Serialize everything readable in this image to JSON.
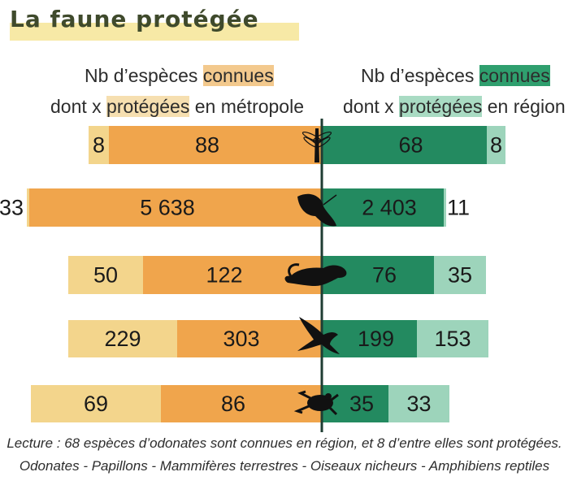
{
  "title": "La faune protégée",
  "header_left": {
    "line1_pre": "Nb d’espèces ",
    "line1_hl": "connues",
    "line2_pre": "dont x ",
    "line2_hl": "protégées",
    "line2_post": " en métropole"
  },
  "header_right": {
    "line1_pre": "Nb d’espèces ",
    "line1_hl": "connues",
    "line2_pre": "dont x ",
    "line2_hl": "protégées",
    "line2_post": " en région"
  },
  "colors": {
    "metro_known": "#f0a54c",
    "metro_protected": "#f3d58c",
    "region_known": "#238a60",
    "region_protected": "#9dd4bb",
    "axis": "#1f3d33"
  },
  "chart_data": {
    "type": "bar",
    "categories": [
      "Odonates",
      "Papillons",
      "Mammifères terrestres",
      "Oiseaux nicheurs",
      "Amphibiens reptiles"
    ],
    "icons": [
      "dragonfly-icon",
      "butterfly-icon",
      "otter-icon",
      "swallow-icon",
      "frog-icon"
    ],
    "series": [
      {
        "key": "metro_known",
        "labels": [
          "88",
          "5 638",
          "122",
          "303",
          "86"
        ],
        "values": [
          88,
          5638,
          122,
          303,
          86
        ]
      },
      {
        "key": "metro_protected",
        "labels": [
          "8",
          "33",
          "50",
          "229",
          "69"
        ],
        "values": [
          8,
          33,
          50,
          229,
          69
        ]
      },
      {
        "key": "region_known",
        "labels": [
          "68",
          "2 403",
          "76",
          "199",
          "35"
        ],
        "values": [
          68,
          2403,
          76,
          199,
          35
        ]
      },
      {
        "key": "region_protected",
        "labels": [
          "8",
          "11",
          "35",
          "153",
          "33"
        ],
        "values": [
          8,
          11,
          35,
          153,
          33
        ]
      }
    ]
  },
  "caption_lecture": "Lecture : 68 espèces d’odonates sont connues en région, et 8  d’entre elles sont protégées.",
  "caption_legend": "Odonates - Papillons - Mammifères terrestres - Oiseaux nicheurs - Amphibiens reptiles"
}
